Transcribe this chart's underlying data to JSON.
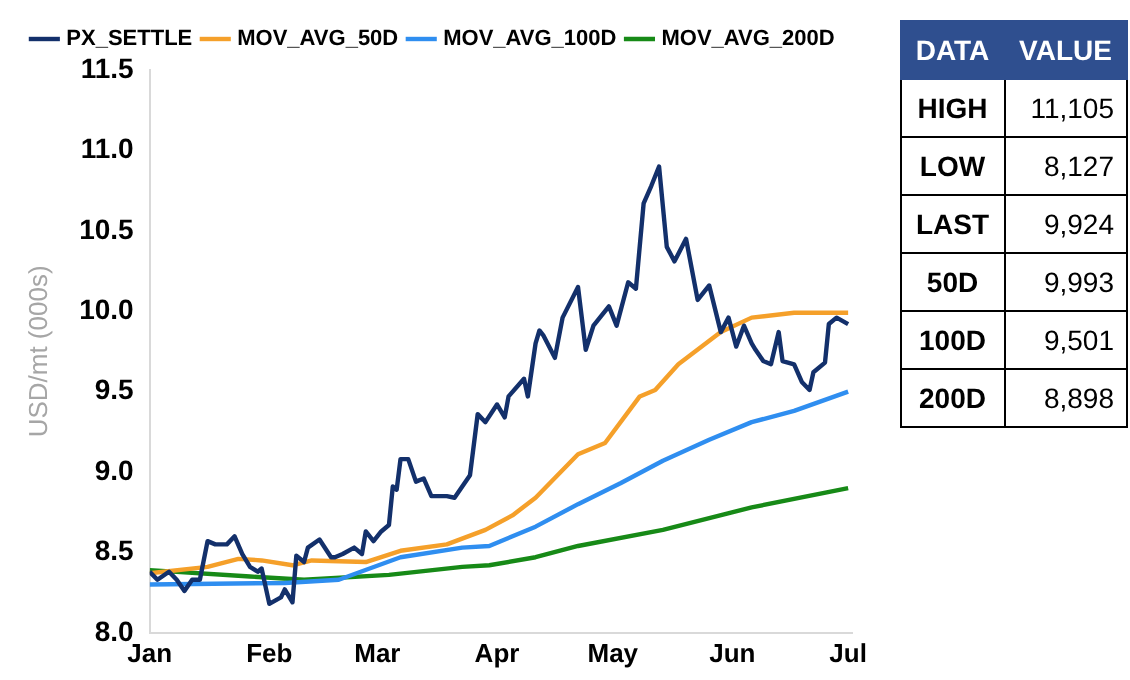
{
  "chart_data": [
    {
      "type": "line",
      "ylabel": "USD/mt (000s)",
      "xlim": [
        "--01-01",
        "--07-02"
      ],
      "xticks": [
        {
          "value": "--01-01",
          "label": "Jan"
        },
        {
          "value": "--02-01",
          "label": "Feb"
        },
        {
          "value": "--03-01",
          "label": "Mar"
        },
        {
          "value": "--04-01",
          "label": "Apr"
        },
        {
          "value": "--05-01",
          "label": "May"
        },
        {
          "value": "--06-01",
          "label": "Jun"
        },
        {
          "value": "--07-01",
          "label": "Jul"
        }
      ],
      "ylim": [
        8,
        11.5
      ],
      "yticks": [
        {
          "value": 8,
          "label": "8.0"
        },
        8.5,
        {
          "value": 9,
          "label": "9.0"
        },
        9.5,
        {
          "value": 10,
          "label": "10.0"
        },
        10.5,
        {
          "value": 11,
          "label": "11.0"
        },
        11.5
      ],
      "grid": false,
      "legend": "top",
      "marker": "none",
      "line_style": "solid",
      "series": [
        {
          "name": "PX_SETTLE",
          "color": "#13306b",
          "x": [
            "--01-01",
            "--01-03",
            "--01-06",
            "--01-08",
            "--01-10",
            "--01-12",
            "--01-14",
            "--01-16",
            "--01-18",
            "--01-21",
            "--01-23",
            "--01-25",
            "--01-27",
            "--01-29",
            "--01-30",
            "--02-01",
            "--02-04",
            "--02-05",
            "--02-07",
            "--02-08",
            "--02-10",
            "--02-11",
            "--02-14",
            "--02-17",
            "--02-18",
            "--02-20",
            "--02-23",
            "--02-25",
            "--02-26",
            "--02-28",
            "--03-02",
            "--03-04",
            "--03-05",
            "--03-06",
            "--03-07",
            "--03-09",
            "--03-11",
            "--03-13",
            "--03-15",
            "--03-19",
            "--03-21",
            "--03-25",
            "--03-27",
            "--03-29",
            "--04-01",
            "--04-03",
            "--04-04",
            "--04-08",
            "--04-09",
            "--04-11",
            "--04-12",
            "--04-13",
            "--04-16",
            "--04-18",
            "--04-22",
            "--04-24",
            "--04-26",
            "--04-30",
            "--05-02",
            "--05-05",
            "--05-07",
            "--05-09",
            "--05-11",
            "--05-13",
            "--05-15",
            "--05-17",
            "--05-20",
            "--05-23",
            "--05-26",
            "--05-29",
            "--05-31",
            "--06-02",
            "--06-04",
            "--06-06",
            "--06-07",
            "--06-09",
            "--06-11",
            "--06-13",
            "--06-14",
            "--06-17",
            "--06-19",
            "--06-21",
            "--06-22",
            "--06-25",
            "--06-26",
            "--06-28",
            "--07-01"
          ],
          "values": [
            8.38,
            8.33,
            8.38,
            8.33,
            8.26,
            8.33,
            8.33,
            8.57,
            8.55,
            8.55,
            8.6,
            8.49,
            8.41,
            8.38,
            8.4,
            8.18,
            8.22,
            8.27,
            8.19,
            8.48,
            8.44,
            8.53,
            8.58,
            8.47,
            8.47,
            8.49,
            8.53,
            8.49,
            8.63,
            8.57,
            8.63,
            8.67,
            8.91,
            8.89,
            9.08,
            9.08,
            8.94,
            8.96,
            8.85,
            8.85,
            8.84,
            8.98,
            9.36,
            9.31,
            9.42,
            9.34,
            9.47,
            9.58,
            9.47,
            9.8,
            9.88,
            9.85,
            9.71,
            9.96,
            10.15,
            9.76,
            9.91,
            10.03,
            9.91,
            10.18,
            10.14,
            10.67,
            10.78,
            10.9,
            10.4,
            10.31,
            10.45,
            10.07,
            10.16,
            9.87,
            9.96,
            9.78,
            9.91,
            9.8,
            9.76,
            9.69,
            9.67,
            9.87,
            9.69,
            9.67,
            9.56,
            9.51,
            9.62,
            9.68,
            9.92,
            9.96,
            9.92
          ]
        },
        {
          "name": "MOV_AVG_50D",
          "color": "#f5a02a",
          "x": [
            "--01-01",
            "--01-16",
            "--01-24",
            "--01-30",
            "--02-07",
            "--02-12",
            "--02-26",
            "--03-07",
            "--03-19",
            "--03-29",
            "--04-05",
            "--04-11",
            "--04-22",
            "--04-29",
            "--05-08",
            "--05-12",
            "--05-18",
            "--05-29",
            "--06-06",
            "--06-17",
            "--07-01"
          ],
          "values": [
            8.37,
            8.41,
            8.46,
            8.45,
            8.42,
            8.45,
            8.44,
            8.51,
            8.55,
            8.64,
            8.73,
            8.84,
            9.11,
            9.18,
            9.47,
            9.51,
            9.67,
            9.87,
            9.96,
            9.99,
            9.99
          ]
        },
        {
          "name": "MOV_AVG_100D",
          "color": "#2f8ef0",
          "x": [
            "--01-01",
            "--02-05",
            "--02-19",
            "--03-07",
            "--03-23",
            "--03-30",
            "--04-11",
            "--04-22",
            "--05-03",
            "--05-14",
            "--05-26",
            "--06-06",
            "--06-17",
            "--07-01"
          ],
          "values": [
            8.3,
            8.31,
            8.33,
            8.47,
            8.53,
            8.54,
            8.66,
            8.8,
            8.93,
            9.07,
            9.2,
            9.31,
            9.38,
            9.5
          ]
        },
        {
          "name": "MOV_AVG_200D",
          "color": "#178a17",
          "x": [
            "--01-01",
            "--01-27",
            "--02-10",
            "--03-04",
            "--03-23",
            "--03-30",
            "--04-11",
            "--04-22",
            "--05-14",
            "--06-06",
            "--07-01"
          ],
          "values": [
            8.39,
            8.35,
            8.33,
            8.36,
            8.41,
            8.42,
            8.47,
            8.54,
            8.64,
            8.78,
            8.9
          ]
        }
      ]
    },
    {
      "type": "other",
      "annotations": [
        "DATA",
        "VALUE"
      ],
      "categories": [
        "HIGH",
        "LOW",
        "LAST",
        "50D",
        "100D",
        "200D"
      ],
      "value_labels": [
        "11,105",
        "8,127",
        "9,924",
        "9,993",
        "9,501",
        "8,898"
      ]
    }
  ]
}
